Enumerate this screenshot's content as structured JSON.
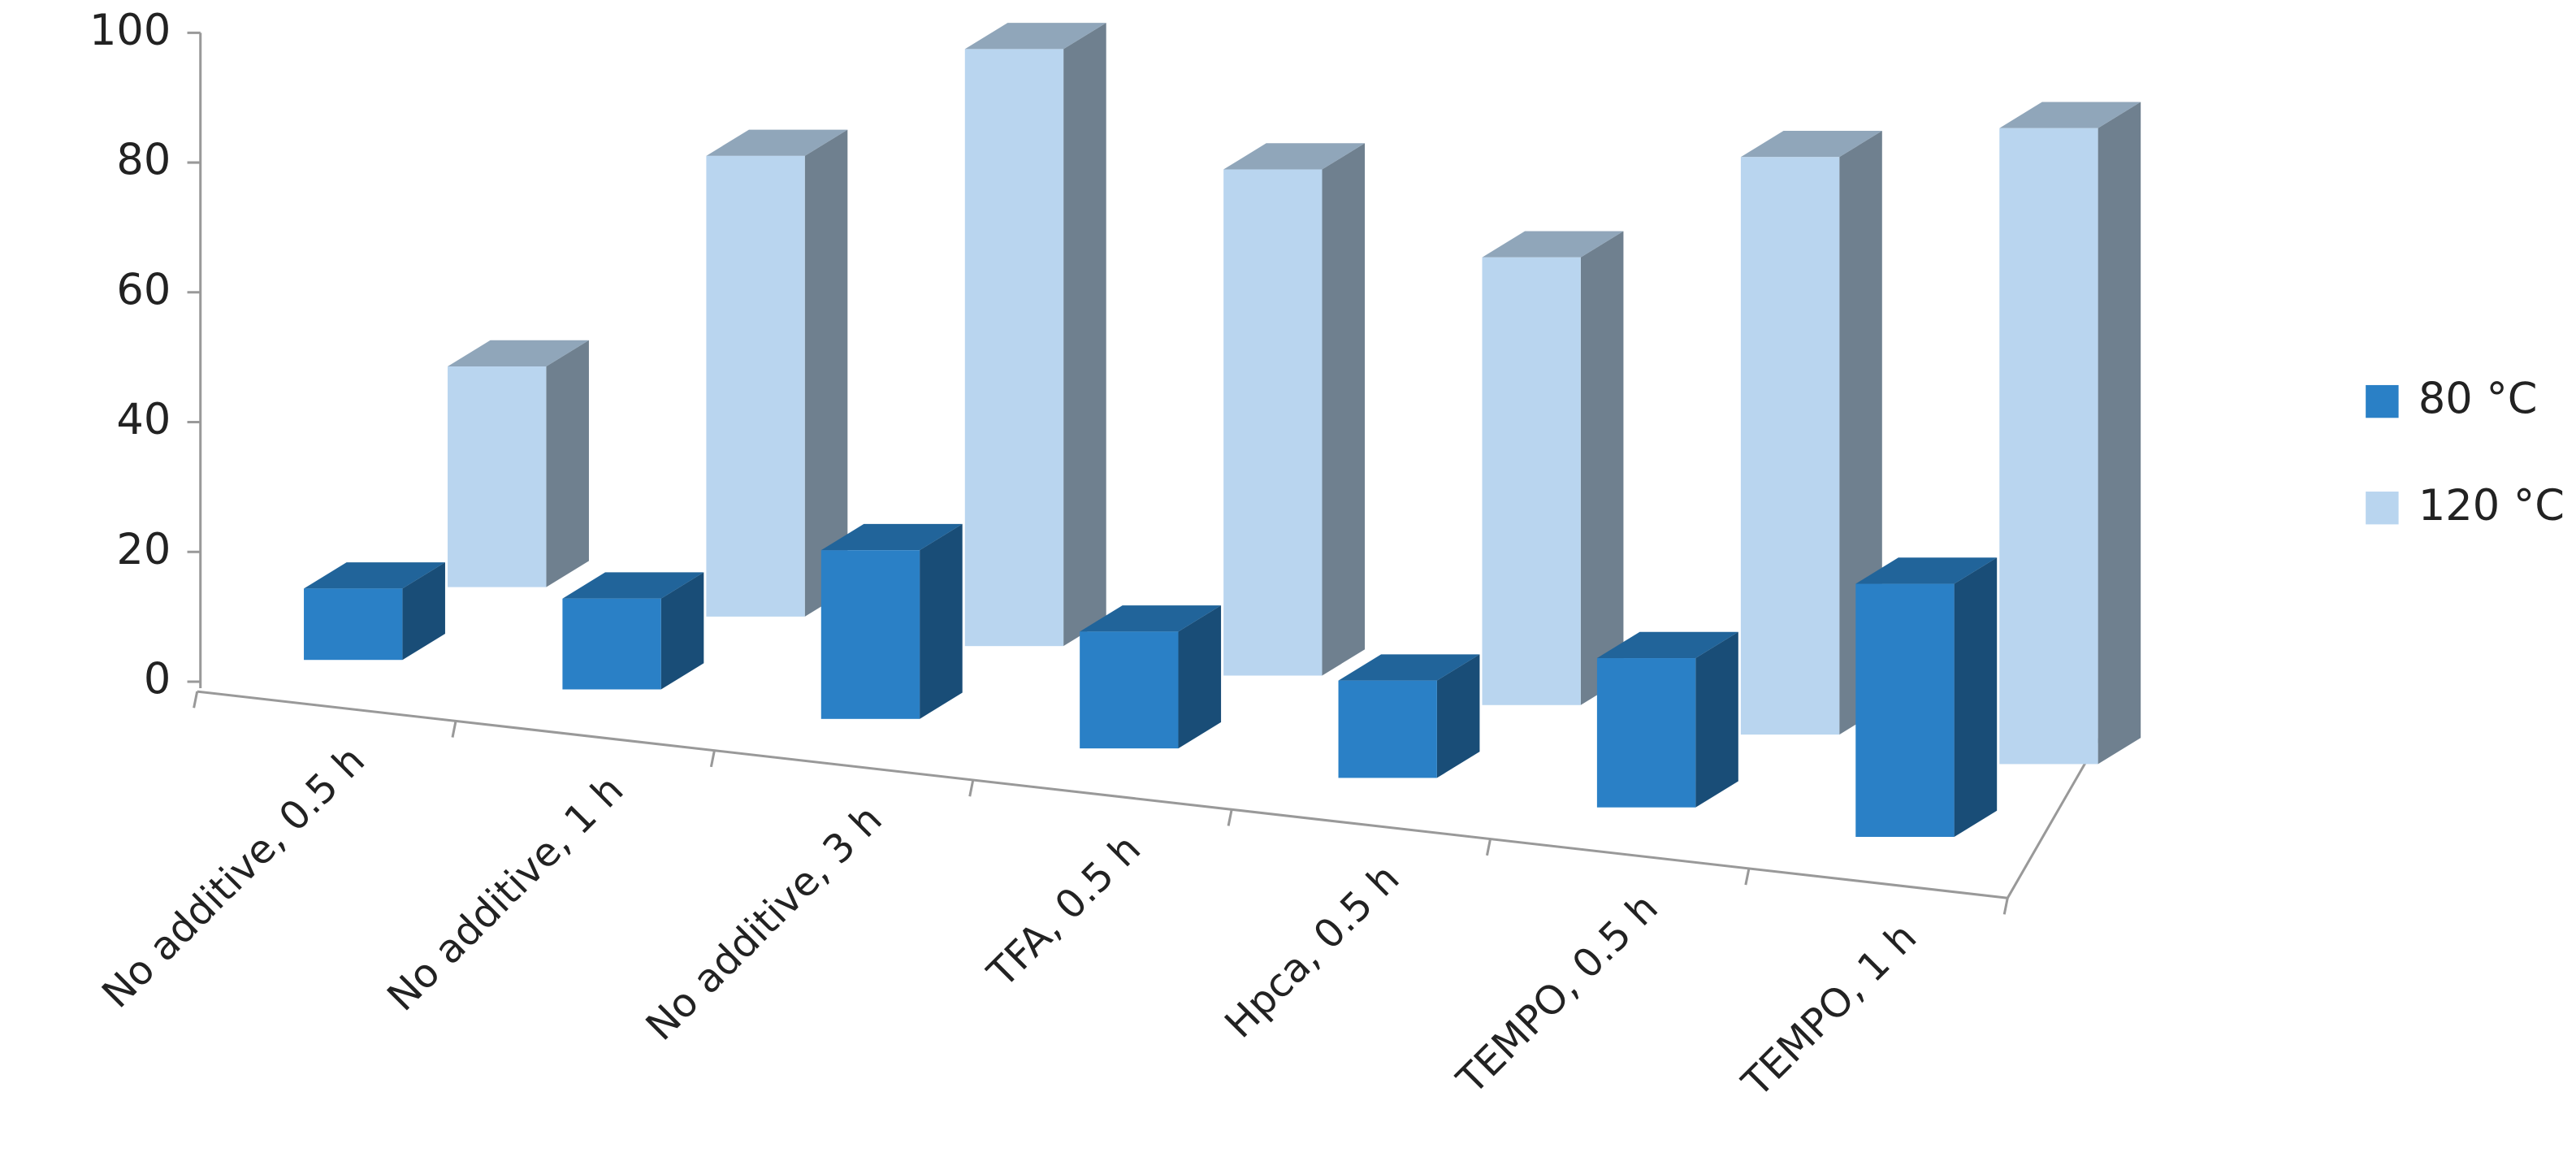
{
  "chart_data": {
    "type": "bar3d",
    "categories": [
      "No additive, 0.5 h",
      "No additive, 1 h",
      "No additive, 3 h",
      "TFA, 0.5 h",
      "Hpca, 0.5 h",
      "TEMPO, 0.5 h",
      "TEMPO, 1 h"
    ],
    "series": [
      {
        "name": "80 °C",
        "color": "#2a80c6",
        "values": [
          11,
          14,
          26,
          18,
          15,
          23,
          39
        ]
      },
      {
        "name": "120 °C",
        "color": "#b9d5ef",
        "values": [
          34,
          71,
          92,
          78,
          69,
          89,
          98
        ]
      }
    ],
    "ylim": [
      0,
      100
    ],
    "yticks": [
      0,
      20,
      40,
      60,
      80,
      100
    ],
    "legend": "right"
  }
}
